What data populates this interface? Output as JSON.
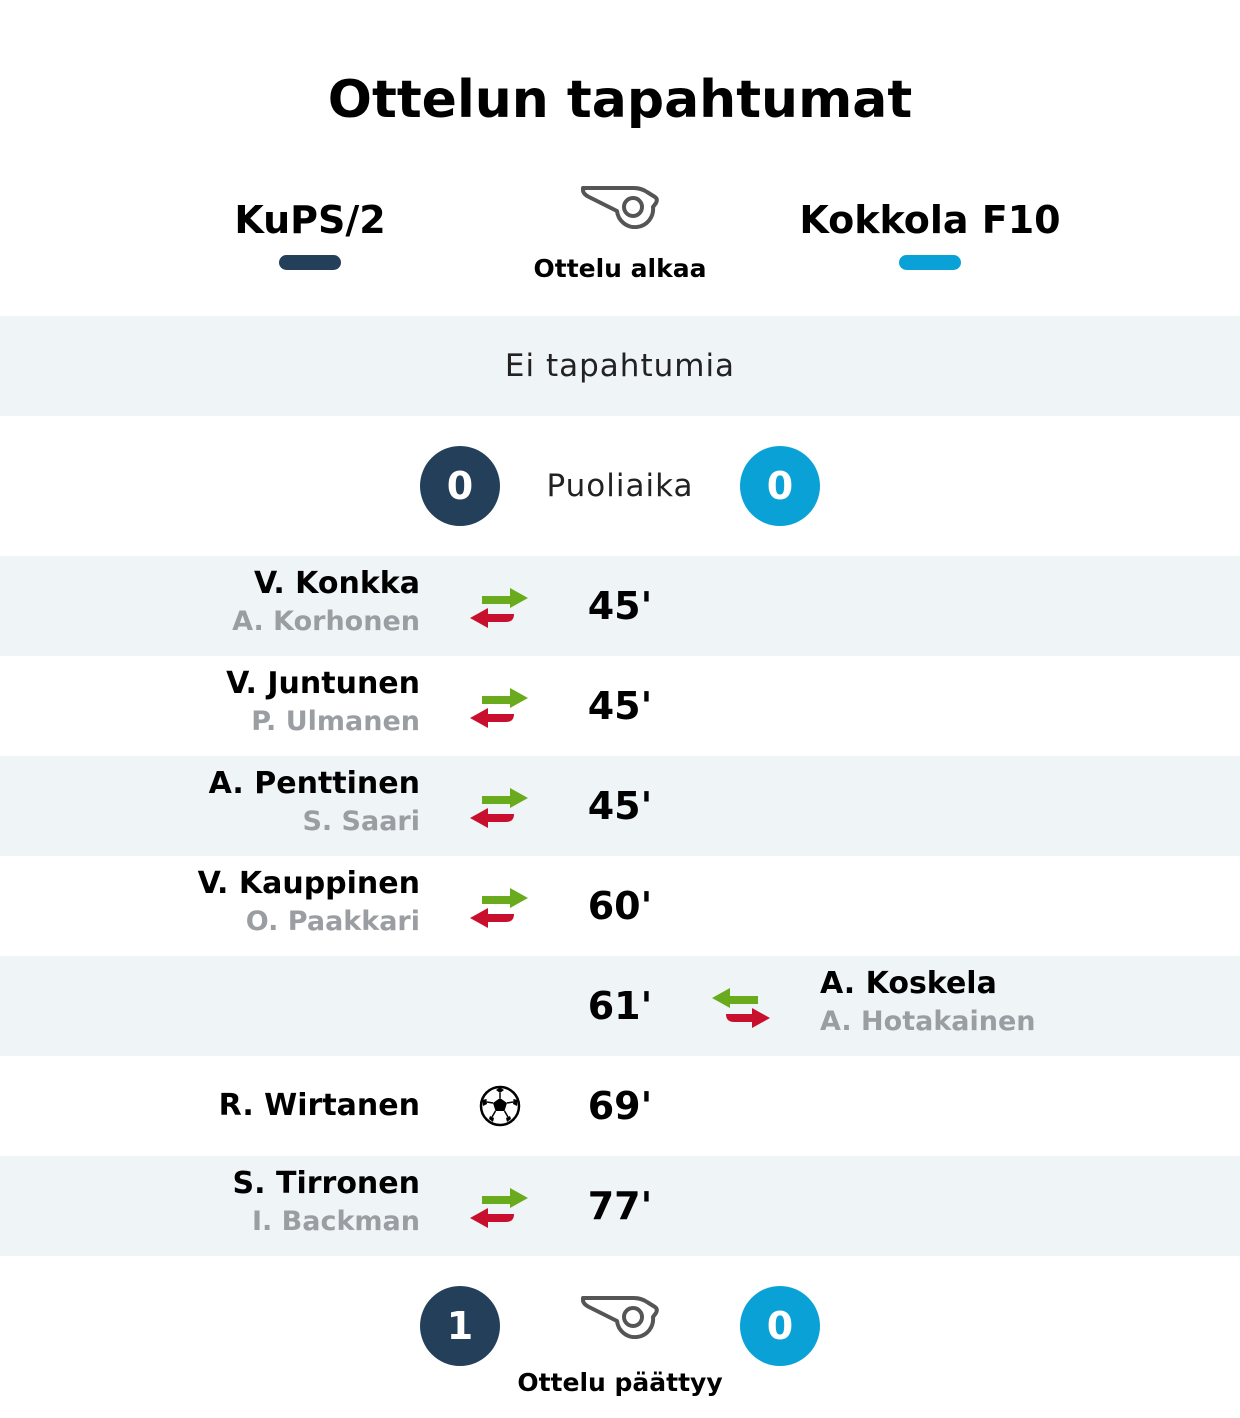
{
  "title": "Ottelun tapahtumat",
  "teams": {
    "home": {
      "name": "KuPS/2",
      "color": "#233f5a"
    },
    "away": {
      "name": "Kokkola F10",
      "color": "#0aa1d6"
    }
  },
  "start": {
    "label": "Ottelu alkaa",
    "icon": "whistle-icon"
  },
  "first_half": {
    "no_events": "Ei tapahtumia"
  },
  "halftime": {
    "label": "Puoliaika",
    "home_score": "0",
    "away_score": "0"
  },
  "events": [
    {
      "minute": "45'",
      "type": "substitution",
      "side": "home",
      "player_in": "V. Konkka",
      "player_out": "A. Korhonen"
    },
    {
      "minute": "45'",
      "type": "substitution",
      "side": "home",
      "player_in": "V. Juntunen",
      "player_out": "P. Ulmanen"
    },
    {
      "minute": "45'",
      "type": "substitution",
      "side": "home",
      "player_in": "A. Penttinen",
      "player_out": "S. Saari"
    },
    {
      "minute": "60'",
      "type": "substitution",
      "side": "home",
      "player_in": "V. Kauppinen",
      "player_out": "O. Paakkari"
    },
    {
      "minute": "61'",
      "type": "substitution",
      "side": "away",
      "player_in": "A. Koskela",
      "player_out": "A. Hotakainen"
    },
    {
      "minute": "69'",
      "type": "goal",
      "side": "home",
      "player": "R. Wirtanen"
    },
    {
      "minute": "77'",
      "type": "substitution",
      "side": "home",
      "player_in": "S. Tirronen",
      "player_out": "I. Backman"
    }
  ],
  "end": {
    "label": "Ottelu päättyy",
    "home_score": "1",
    "away_score": "0",
    "icon": "whistle-icon"
  },
  "icon_colors": {
    "sub_in": "#6aab1e",
    "sub_out": "#c8102e"
  }
}
